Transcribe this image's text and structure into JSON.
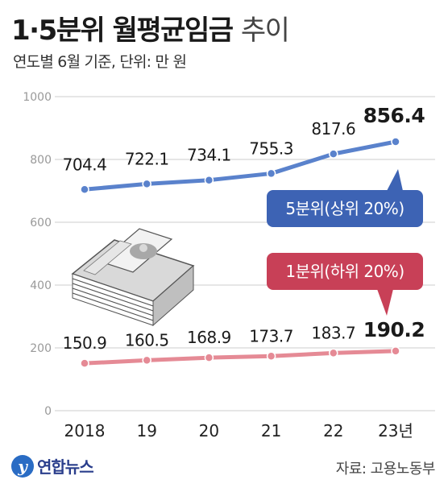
{
  "header": {
    "title_bold": "1·5분위 월평균임금",
    "title_light": "추이",
    "subtitle": "연도별 6월 기준, 단위: 만 원"
  },
  "footer": {
    "logo_text": "연합뉴스",
    "source": "자료: 고용노동부"
  },
  "colors": {
    "top_series": "#5a82cc",
    "top_label_bg": "#3d63b4",
    "bottom_series": "#e58a95",
    "bottom_label_bg": "#c84057",
    "grid": "#d8d8d8",
    "axis_text": "#999999"
  },
  "chart_data": {
    "type": "line",
    "categories": [
      "2018",
      "19",
      "20",
      "21",
      "22",
      "23년"
    ],
    "ylim": [
      0,
      1000
    ],
    "yticks": [
      0,
      200,
      400,
      600,
      800,
      1000
    ],
    "grid": true,
    "series": [
      {
        "name": "5분위(상위 20%)",
        "values": [
          704.4,
          722.1,
          734.1,
          755.3,
          817.6,
          856.4
        ],
        "labels": [
          "704.4",
          "722.1",
          "734.1",
          "755.3",
          "817.6",
          "856.4"
        ]
      },
      {
        "name": "1분위(하위 20%)",
        "values": [
          150.9,
          160.5,
          168.9,
          173.7,
          183.7,
          190.2
        ],
        "labels": [
          "150.9",
          "160.5",
          "168.9",
          "173.7",
          "183.7",
          "190.2"
        ]
      }
    ]
  }
}
